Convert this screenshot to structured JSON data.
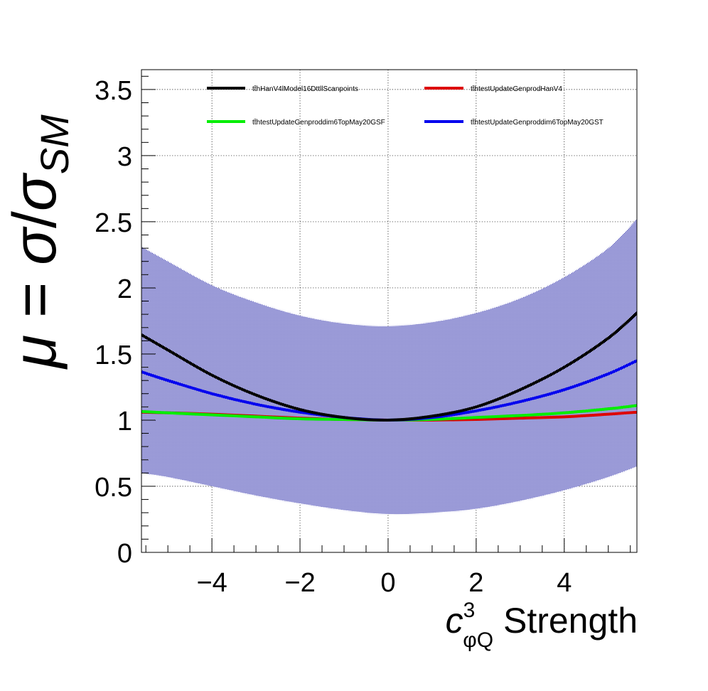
{
  "chart_data": {
    "type": "line",
    "title": "",
    "xlabel": {
      "base": "c",
      "superscript": "3",
      "subscript": "φQ",
      "suffix": " Strength"
    },
    "ylabel": {
      "mu": "μ",
      "equals": " = ",
      "sigma": "σ",
      "slash": "/",
      "sigma2": "σ",
      "subscript": "SM"
    },
    "xlim": [
      -5.6,
      5.65
    ],
    "ylim": [
      0,
      3.65
    ],
    "x_ticks": [
      -4,
      -2,
      0,
      2,
      4
    ],
    "x_tick_labels": [
      "−4",
      "−2",
      "0",
      "2",
      "4"
    ],
    "y_ticks": [
      0,
      0.5,
      1,
      1.5,
      2,
      2.5,
      3,
      3.5
    ],
    "y_tick_labels": [
      "0",
      "0.5",
      "1",
      "1.5",
      "2",
      "2.5",
      "3",
      "3.5"
    ],
    "grid": true,
    "legend_position": "top",
    "uncertainty_bands": [
      {
        "color": "#1a1a9e",
        "x": [
          -5.6,
          -5,
          -4,
          -3,
          -2,
          -1,
          0,
          1,
          2,
          3,
          4,
          5,
          5.65
        ],
        "upper": [
          2.31,
          2.2,
          2.02,
          1.89,
          1.79,
          1.73,
          1.71,
          1.74,
          1.81,
          1.92,
          2.08,
          2.3,
          2.52
        ],
        "lower": [
          0.6,
          0.57,
          0.5,
          0.43,
          0.37,
          0.32,
          0.29,
          0.3,
          0.33,
          0.39,
          0.47,
          0.57,
          0.65
        ]
      }
    ],
    "series": [
      {
        "name": "tt̄hHanV4lModel16DttllScanpoints",
        "color": "#000000",
        "x": [
          -5.6,
          -5,
          -4,
          -3,
          -2,
          -1,
          0,
          1,
          2,
          3,
          4,
          5,
          5.65
        ],
        "values": [
          1.645,
          1.53,
          1.34,
          1.19,
          1.08,
          1.02,
          1.0,
          1.03,
          1.1,
          1.23,
          1.4,
          1.62,
          1.81
        ]
      },
      {
        "name": "tt̄htestUpdateGenprodHanV4",
        "color": "#dd0000",
        "x": [
          -5.6,
          -5,
          -4,
          -3,
          -2,
          -1,
          0,
          1,
          2,
          3,
          4,
          5,
          5.65
        ],
        "values": [
          1.06,
          1.055,
          1.045,
          1.03,
          1.015,
          1.005,
          1.0,
          1.0,
          1.005,
          1.015,
          1.025,
          1.045,
          1.06
        ]
      },
      {
        "name": "tt̄htestUpdateGenproddim6TopMay20GSF",
        "color": "#00ee00",
        "x": [
          -5.6,
          -5,
          -4,
          -3,
          -2,
          -1,
          0,
          1,
          2,
          3,
          4,
          5,
          5.65
        ],
        "values": [
          1.065,
          1.055,
          1.04,
          1.025,
          1.01,
          1.005,
          1.0,
          1.005,
          1.02,
          1.035,
          1.055,
          1.085,
          1.11
        ]
      },
      {
        "name": "tt̄htestUpdateGenproddim6TopMay20GST",
        "color": "#0000ee",
        "x": [
          -5.6,
          -5,
          -4,
          -3,
          -2,
          -1,
          0,
          1,
          2,
          3,
          4,
          5,
          5.65
        ],
        "values": [
          1.365,
          1.3,
          1.2,
          1.12,
          1.06,
          1.02,
          1.0,
          1.02,
          1.07,
          1.14,
          1.23,
          1.35,
          1.45
        ]
      }
    ]
  }
}
